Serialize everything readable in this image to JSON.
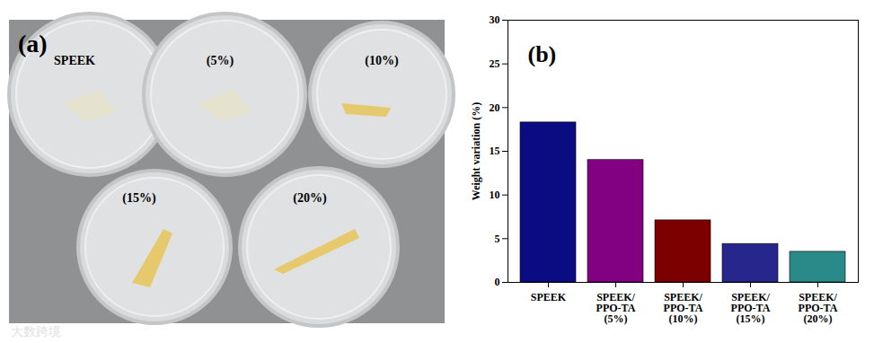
{
  "photo": {
    "panel_label": "(a)",
    "dish_labels": [
      "SPEEK",
      "(5%)",
      "(10%)",
      "(15%)",
      "(20%)"
    ],
    "watermark": "大数跨境"
  },
  "chart_data": {
    "type": "bar",
    "panel_label": "(b)",
    "categories": [
      "SPEEK",
      "SPEEK/\nPPO-TA\n(5%)",
      "SPEEK/\nPPO-TA\n(10%)",
      "SPEEK/\nPPO-TA\n(15%)",
      "SPEEK/\nPPO-TA\n(20%)"
    ],
    "values": [
      18.3,
      14.0,
      7.1,
      4.4,
      3.5
    ],
    "colors": [
      "#0c0c82",
      "#820082",
      "#7d0000",
      "#26268c",
      "#2a8a8a"
    ],
    "y_label": "Weight variation (%)",
    "ylim": [
      0,
      30
    ],
    "yticks": [
      0,
      5,
      10,
      15,
      20,
      25,
      30
    ],
    "grid": false
  }
}
